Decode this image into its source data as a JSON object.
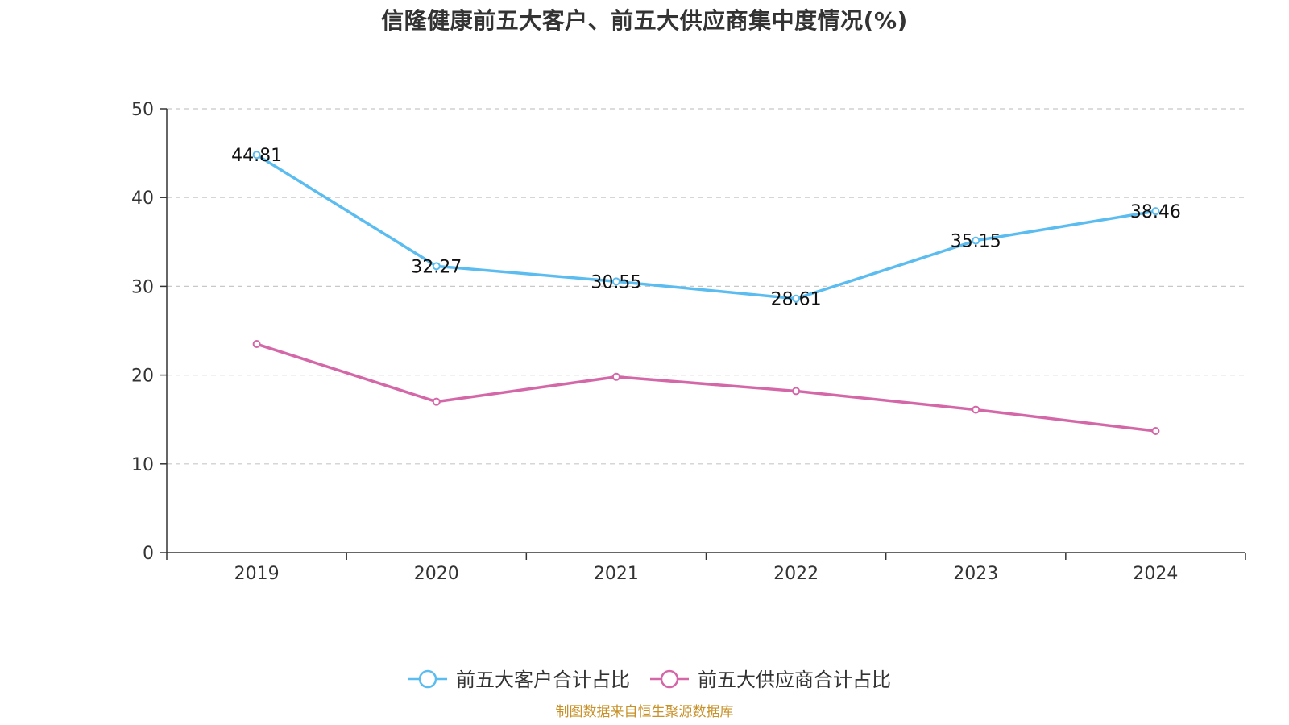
{
  "title": "信隆健康前五大客户、前五大供应商集中度情况(%)",
  "source": "制图数据来自恒生聚源数据库",
  "colors": {
    "customers": "#5bbcf0",
    "suppliers": "#d467a8",
    "grid": "#c8c8c8",
    "axis": "#333333",
    "source": "#c8922a"
  },
  "chart_data": {
    "type": "line",
    "title": "信隆健康前五大客户、前五大供应商集中度情况(%)",
    "categories": [
      "2019",
      "2020",
      "2021",
      "2022",
      "2023",
      "2024"
    ],
    "ylim": [
      0,
      50
    ],
    "yticks": [
      "0",
      "10",
      "20",
      "30",
      "40",
      "50"
    ],
    "grid": "horizontal-dashed",
    "legend_position": "bottom-center",
    "series": [
      {
        "name": "前五大客户合计占比",
        "values": [
          44.81,
          32.27,
          30.55,
          28.61,
          35.15,
          38.46
        ],
        "labels": [
          "44.81",
          "32.27",
          "30.55",
          "28.61",
          "35.15",
          "38.46"
        ],
        "color": "#5bbcf0"
      },
      {
        "name": "前五大供应商合计占比",
        "values": [
          23.5,
          17.0,
          19.8,
          18.2,
          16.1,
          13.7
        ],
        "color": "#d467a8"
      }
    ]
  }
}
